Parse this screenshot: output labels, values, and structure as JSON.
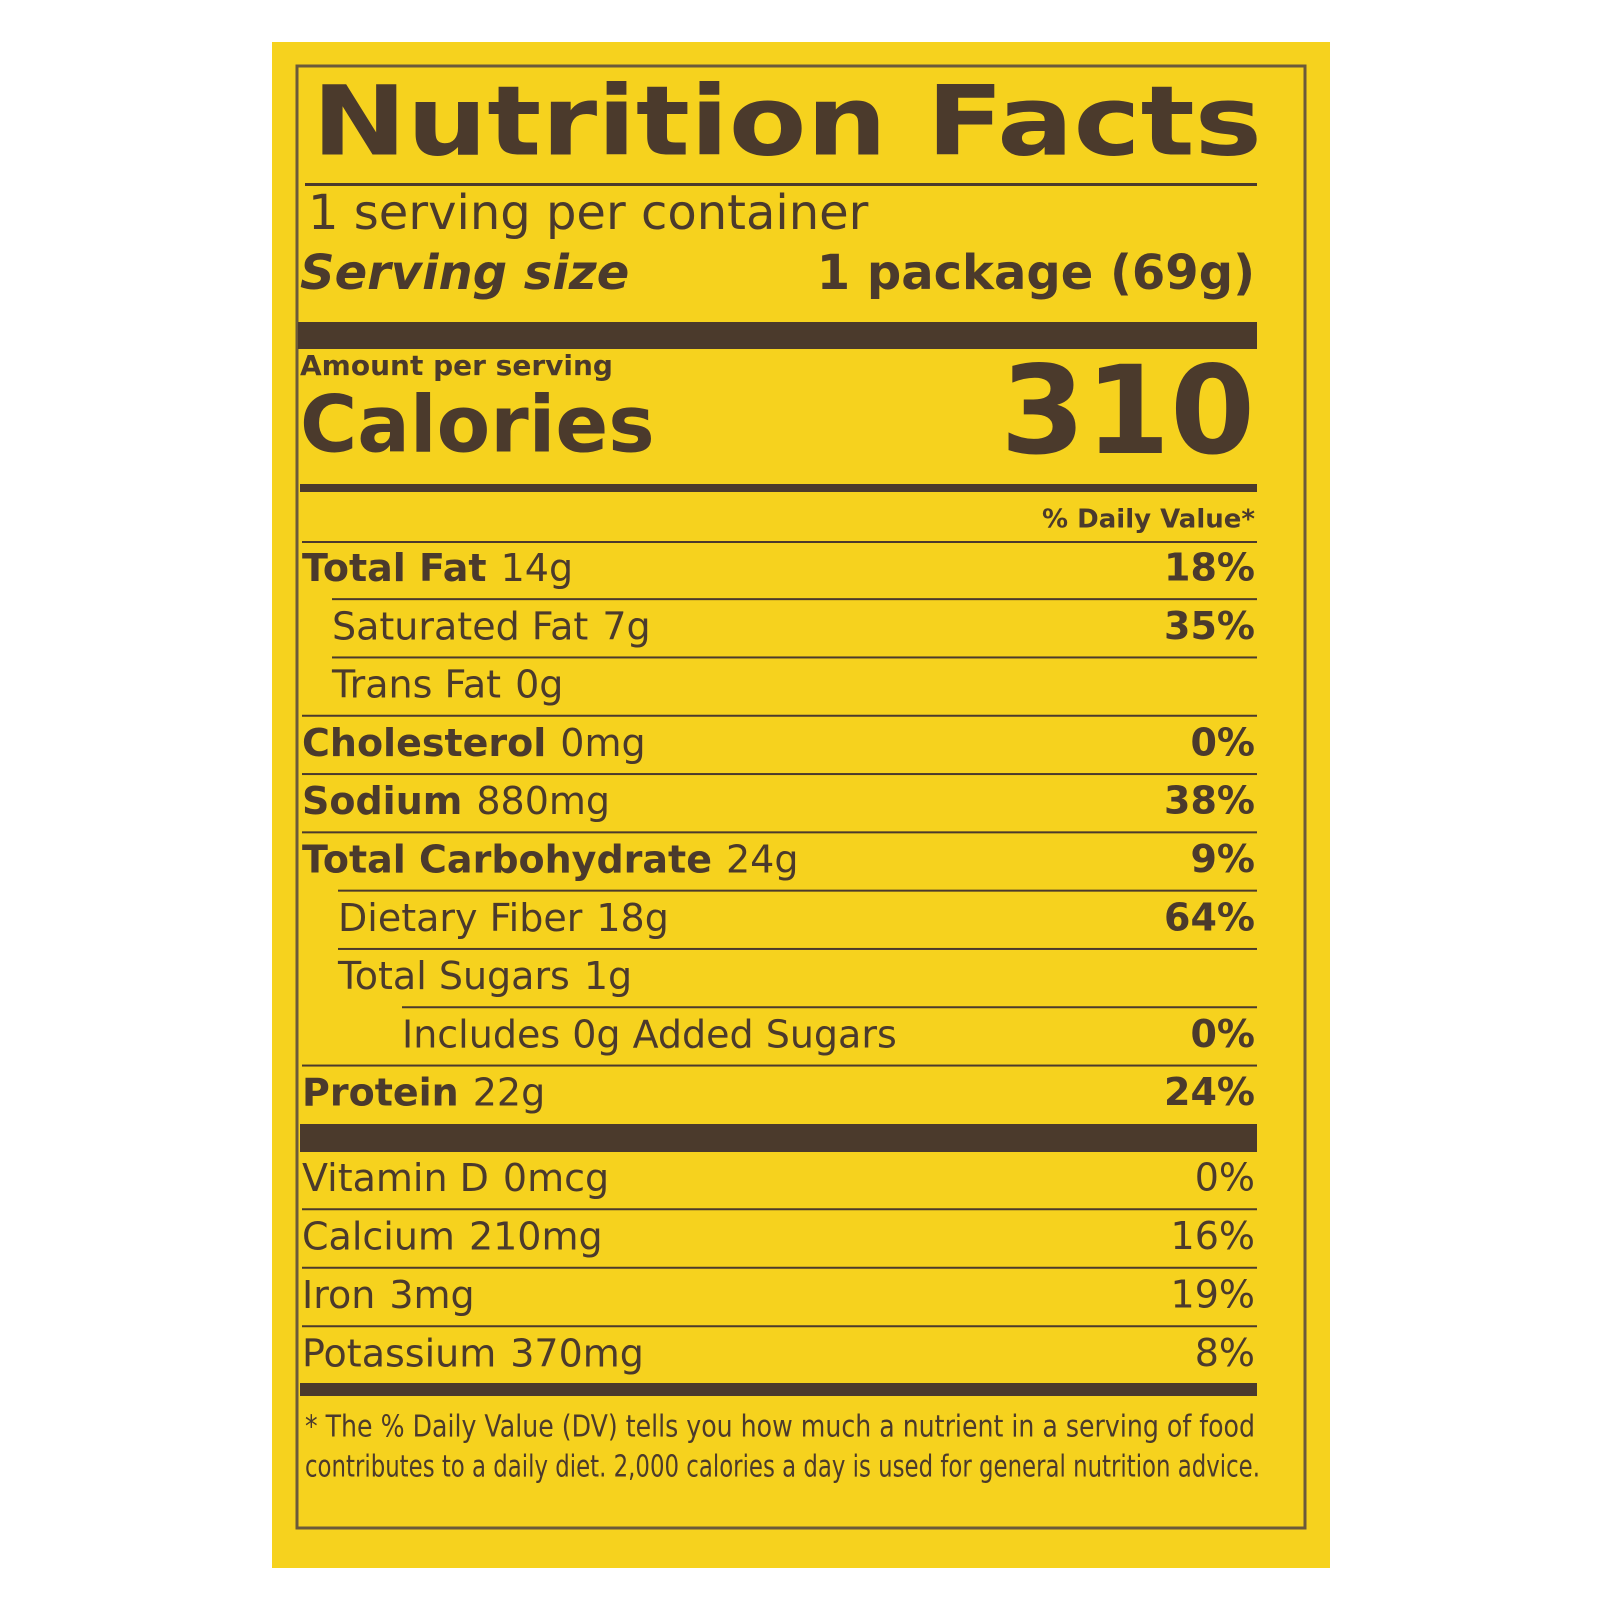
{
  "header": {
    "title": "Nutrition Facts",
    "servings": "1 serving per container",
    "serving_size_label": "Serving size",
    "serving_size": "1 package (69g)"
  },
  "calories": {
    "label_small": "Amount per serving",
    "label": "Calories",
    "value": "310"
  },
  "daily_value_header": "% Daily Value*",
  "nutrients": [
    {
      "name": "Total Fat",
      "amount": "14g",
      "dv": "18%"
    },
    {
      "name": "Saturated Fat",
      "amount": "7g",
      "dv": "35%"
    },
    {
      "name": "Trans Fat",
      "amount": "0g"
    },
    {
      "name": "Cholesterol",
      "amount": "0mg",
      "dv": "0%"
    },
    {
      "name": "Sodium",
      "amount": "880mg",
      "dv": "38%"
    },
    {
      "name": "Total Carbohydrate",
      "amount": "24g",
      "dv": "9%"
    },
    {
      "name": "Dietary Fiber",
      "amount": "18g",
      "dv": "64%"
    },
    {
      "name": "Total Sugars",
      "amount": "1g"
    },
    {
      "name": "Includes 0g Added Sugars",
      "dv": "0%"
    },
    {
      "name": "Protein",
      "amount": "22g",
      "dv": "24%"
    }
  ],
  "vitamins": [
    {
      "name": "Vitamin D",
      "amount": "0mcg",
      "dv": "0%"
    },
    {
      "name": "Calcium",
      "amount": "210mg",
      "dv": "16%"
    },
    {
      "name": "Iron",
      "amount": "3mg",
      "dv": "19%"
    },
    {
      "name": "Potassium",
      "amount": "370mg",
      "dv": "8%"
    }
  ],
  "footnote": [
    "* The % Daily Value (DV) tells you how much a nutrient in a serving of food",
    "contributes to a daily diet. 2,000 calories a day is used for general nutrition advice."
  ]
}
